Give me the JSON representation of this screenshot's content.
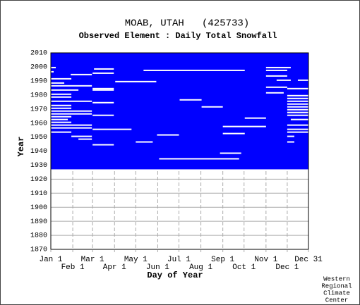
{
  "chart_data": {
    "type": "availability",
    "title": "MOAB, UTAH   (425733)",
    "subtitle": "Observed Element : Daily Total Snowfall",
    "x_label": "Day of Year",
    "y_label": "Year",
    "footer": [
      "Western",
      "Regional",
      "Climate",
      "Center"
    ],
    "color": "#0000ff",
    "coverage": [
      1927,
      2010
    ],
    "xlim": [
      1,
      365
    ],
    "ylim": [
      1870,
      2010
    ],
    "xticks": [
      {
        "value": 1,
        "label": "Jan 1"
      },
      {
        "value": 32,
        "label": "Feb 1"
      },
      {
        "value": 60,
        "label": "Mar 1"
      },
      {
        "value": 91,
        "label": "Apr 1"
      },
      {
        "value": 121,
        "label": "May 1"
      },
      {
        "value": 152,
        "label": "Jun 1"
      },
      {
        "value": 182,
        "label": "Jul 1"
      },
      {
        "value": 213,
        "label": "Aug 1"
      },
      {
        "value": 244,
        "label": "Sep 1"
      },
      {
        "value": 274,
        "label": "Oct 1"
      },
      {
        "value": 305,
        "label": "Nov 1"
      },
      {
        "value": 335,
        "label": "Dec 1"
      },
      {
        "value": 365,
        "label": "Dec 31"
      }
    ],
    "yticks": [
      1870,
      1880,
      1890,
      1900,
      1910,
      1920,
      1930,
      1940,
      1950,
      1960,
      1970,
      1980,
      1990,
      2000,
      2010
    ],
    "gaps": [
      {
        "year": 1999,
        "start": 1,
        "end": 8
      },
      {
        "year": 1996,
        "start": 1,
        "end": 5
      },
      {
        "year": 1994,
        "start": 29,
        "end": 59
      },
      {
        "year": 1991,
        "start": 1,
        "end": 30
      },
      {
        "year": 1988,
        "start": 1,
        "end": 20
      },
      {
        "year": 1986,
        "start": 1,
        "end": 59
      },
      {
        "year": 1983,
        "start": 1,
        "end": 40
      },
      {
        "year": 1980,
        "start": 1,
        "end": 30
      },
      {
        "year": 1978,
        "start": 1,
        "end": 30
      },
      {
        "year": 1975,
        "start": 1,
        "end": 59
      },
      {
        "year": 1972,
        "start": 1,
        "end": 30
      },
      {
        "year": 1970,
        "start": 1,
        "end": 30
      },
      {
        "year": 1968,
        "start": 1,
        "end": 59
      },
      {
        "year": 1966,
        "start": 1,
        "end": 59
      },
      {
        "year": 1964,
        "start": 1,
        "end": 30
      },
      {
        "year": 1962,
        "start": 1,
        "end": 25
      },
      {
        "year": 1960,
        "start": 1,
        "end": 30
      },
      {
        "year": 1958,
        "start": 1,
        "end": 59
      },
      {
        "year": 1956,
        "start": 1,
        "end": 59
      },
      {
        "year": 1953,
        "start": 1,
        "end": 30
      },
      {
        "year": 1950,
        "start": 30,
        "end": 59
      },
      {
        "year": 1948,
        "start": 40,
        "end": 59
      },
      {
        "year": 1998,
        "start": 62,
        "end": 90
      },
      {
        "year": 1995,
        "start": 60,
        "end": 90
      },
      {
        "year": 1984,
        "start": 60,
        "end": 90
      },
      {
        "year": 1983,
        "start": 60,
        "end": 90
      },
      {
        "year": 1974,
        "start": 60,
        "end": 90
      },
      {
        "year": 1965,
        "start": 60,
        "end": 90
      },
      {
        "year": 1955,
        "start": 60,
        "end": 115
      },
      {
        "year": 1944,
        "start": 60,
        "end": 90
      },
      {
        "year": 1997,
        "start": 132,
        "end": 275
      },
      {
        "year": 1989,
        "start": 92,
        "end": 150
      },
      {
        "year": 1976,
        "start": 183,
        "end": 214
      },
      {
        "year": 1971,
        "start": 214,
        "end": 244
      },
      {
        "year": 1963,
        "start": 275,
        "end": 305
      },
      {
        "year": 1957,
        "start": 244,
        "end": 305
      },
      {
        "year": 1952,
        "start": 244,
        "end": 275
      },
      {
        "year": 1951,
        "start": 151,
        "end": 182
      },
      {
        "year": 1946,
        "start": 121,
        "end": 145
      },
      {
        "year": 1934,
        "start": 154,
        "end": 267
      },
      {
        "year": 1938,
        "start": 240,
        "end": 270
      },
      {
        "year": 1999,
        "start": 305,
        "end": 340
      },
      {
        "year": 1997,
        "start": 305,
        "end": 335
      },
      {
        "year": 1993,
        "start": 305,
        "end": 335
      },
      {
        "year": 1990,
        "start": 320,
        "end": 340
      },
      {
        "year": 1985,
        "start": 305,
        "end": 335
      },
      {
        "year": 1981,
        "start": 305,
        "end": 330
      },
      {
        "year": 1979,
        "start": 335,
        "end": 365
      },
      {
        "year": 1977,
        "start": 335,
        "end": 365
      },
      {
        "year": 1975,
        "start": 335,
        "end": 365
      },
      {
        "year": 1973,
        "start": 335,
        "end": 365
      },
      {
        "year": 1971,
        "start": 335,
        "end": 365
      },
      {
        "year": 1969,
        "start": 335,
        "end": 365
      },
      {
        "year": 1967,
        "start": 335,
        "end": 365
      },
      {
        "year": 1965,
        "start": 335,
        "end": 365
      },
      {
        "year": 1962,
        "start": 340,
        "end": 365
      },
      {
        "year": 1958,
        "start": 335,
        "end": 365
      },
      {
        "year": 1955,
        "start": 335,
        "end": 365
      },
      {
        "year": 1953,
        "start": 335,
        "end": 365
      },
      {
        "year": 1950,
        "start": 335,
        "end": 345
      },
      {
        "year": 1946,
        "start": 335,
        "end": 345
      },
      {
        "year": 1984,
        "start": 335,
        "end": 365
      },
      {
        "year": 1990,
        "start": 350,
        "end": 365
      }
    ]
  }
}
